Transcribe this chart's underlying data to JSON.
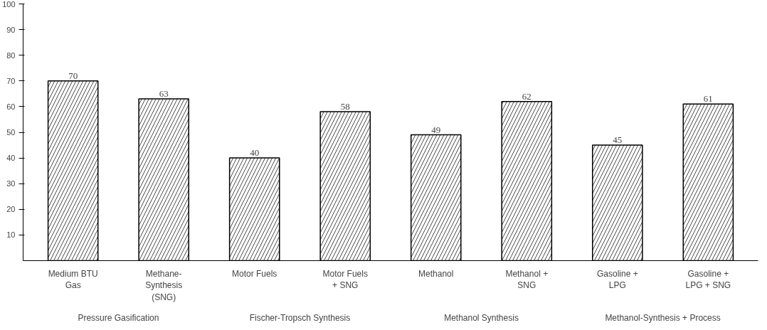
{
  "chart_data": {
    "type": "bar",
    "categories": [
      "Medium BTU Gas",
      "Methane-Synthesis (SNG)",
      "Motor Fuels",
      "Motor Fuels + SNG",
      "Methanol",
      "Methanol + SNG",
      "Gasoline + LPG",
      "Gasoline + LPG + SNG"
    ],
    "values": [
      70,
      63,
      40,
      58,
      49,
      62,
      45,
      61
    ],
    "color": "#ffffff",
    "data_labels": true,
    "ylim": [
      0,
      100
    ],
    "yticks": [
      10,
      20,
      30,
      40,
      50,
      60,
      70,
      80,
      90,
      100
    ],
    "grid": false,
    "annotations": [
      "Pressure Gasification",
      "Fischer-Tropsch Synthesis",
      "Methanol Synthesis",
      "Methanol-Synthesis + Process"
    ]
  }
}
